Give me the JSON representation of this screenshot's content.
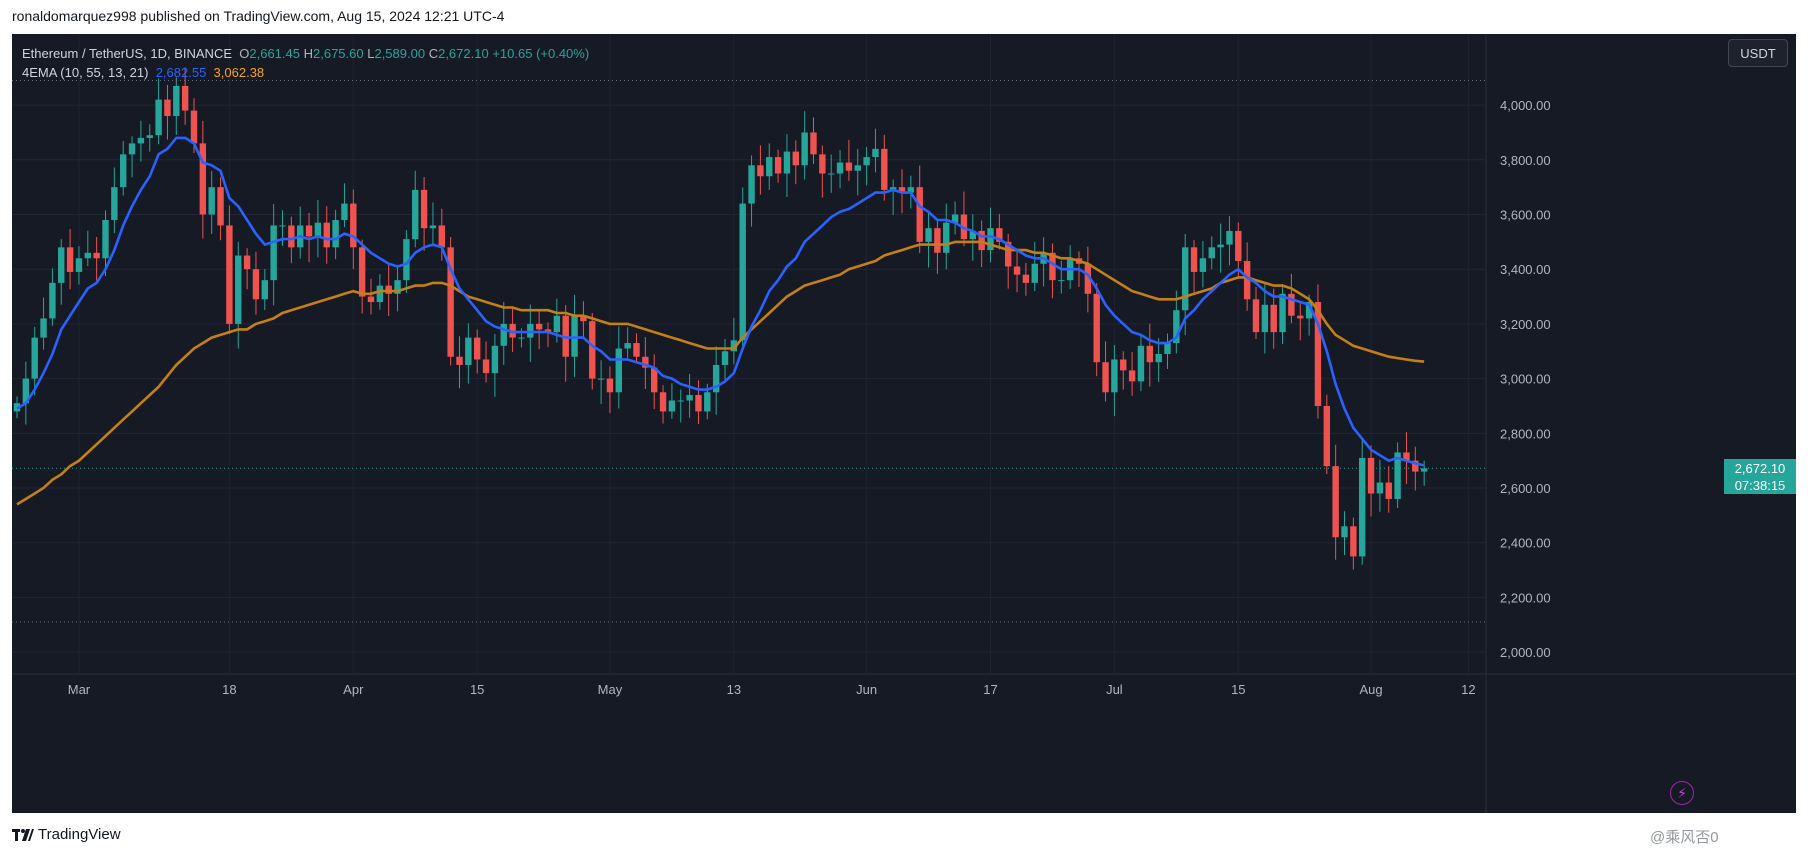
{
  "header": {
    "published_line": "ronaldomarquez998 published on TradingView.com, Aug 15, 2024 12:21 UTC-4"
  },
  "legend": {
    "symbol": "Ethereum / TetherUS, 1D, BINANCE",
    "o_label": "O",
    "o": "2,661.45",
    "h_label": "H",
    "h": "2,675.60",
    "l_label": "L",
    "l": "2,589.00",
    "c_label": "C",
    "c": "2,672.10",
    "change": "+10.65 (+0.40%)",
    "indicator": "4EMA (10, 55, 13, 21)",
    "ema_fast": "2,682.55",
    "ema_slow": "3,062.38"
  },
  "currency_button": "USDT",
  "price_badge": {
    "price": "2,672.10",
    "countdown": "07:38:15"
  },
  "colors": {
    "up": "#26a69a",
    "down": "#ef5350",
    "ema_fast": "#2962ff",
    "ema_slow": "#c47f17",
    "background": "#161a25"
  },
  "footer": {
    "brand": "TradingView",
    "watermark": "@乘风否0"
  },
  "flash_icon": "lightning-icon",
  "chart_data": {
    "type": "candlestick",
    "title": "Ethereum / TetherUS, 1D, BINANCE",
    "ylim": [
      1920,
      4260
    ],
    "yticks": [
      "2,000.00",
      "2,200.00",
      "2,400.00",
      "2,600.00",
      "2,800.00",
      "3,000.00",
      "3,200.00",
      "3,400.00",
      "3,600.00",
      "3,800.00",
      "4,000.00"
    ],
    "xticks": [
      "Mar",
      "18",
      "Apr",
      "15",
      "May",
      "13",
      "Jun",
      "17",
      "Jul",
      "15",
      "Aug",
      "12"
    ],
    "xtick_indices": [
      7,
      24,
      38,
      52,
      67,
      81,
      96,
      110,
      124,
      138,
      153,
      164
    ],
    "reference_lines": [
      4090,
      2110
    ],
    "last_price": 2672.1,
    "closes": [
      2910,
      3000,
      3150,
      3220,
      3350,
      3480,
      3390,
      3440,
      3460,
      3440,
      3580,
      3700,
      3820,
      3860,
      3880,
      3890,
      4020,
      3960,
      4070,
      3980,
      3860,
      3600,
      3700,
      3560,
      3200,
      3450,
      3400,
      3290,
      3360,
      3560,
      3560,
      3480,
      3560,
      3520,
      3570,
      3480,
      3580,
      3640,
      3480,
      3300,
      3280,
      3340,
      3310,
      3360,
      3510,
      3690,
      3550,
      3560,
      3480,
      3080,
      3050,
      3150,
      3070,
      3020,
      3120,
      3200,
      3150,
      3150,
      3200,
      3180,
      3170,
      3230,
      3080,
      3230,
      3210,
      3000,
      3000,
      2950,
      3110,
      3130,
      3080,
      3040,
      2950,
      2880,
      2920,
      2920,
      2940,
      2880,
      2950,
      3050,
      3100,
      3140,
      3640,
      3780,
      3740,
      3810,
      3750,
      3830,
      3780,
      3900,
      3820,
      3750,
      3750,
      3790,
      3760,
      3780,
      3810,
      3840,
      3690,
      3700,
      3680,
      3700,
      3500,
      3550,
      3460,
      3570,
      3600,
      3510,
      3540,
      3470,
      3550,
      3500,
      3410,
      3380,
      3350,
      3420,
      3460,
      3360,
      3360,
      3440,
      3420,
      3310,
      3060,
      2950,
      3070,
      3030,
      2990,
      3120,
      3060,
      3090,
      3130,
      3250,
      3480,
      3390,
      3440,
      3480,
      3490,
      3540,
      3430,
      3290,
      3170,
      3270,
      3170,
      3310,
      3230,
      3220,
      3280,
      2900,
      2680,
      2420,
      2460,
      2350,
      2710,
      2580,
      2620,
      2560,
      2730,
      2700,
      2660,
      2672.1
    ],
    "ema_fast": [
      2890,
      2910,
      2960,
      3020,
      3090,
      3180,
      3230,
      3280,
      3330,
      3350,
      3400,
      3470,
      3560,
      3630,
      3690,
      3740,
      3820,
      3840,
      3880,
      3880,
      3860,
      3790,
      3780,
      3760,
      3660,
      3630,
      3580,
      3530,
      3490,
      3500,
      3510,
      3510,
      3520,
      3510,
      3520,
      3510,
      3510,
      3530,
      3520,
      3490,
      3460,
      3440,
      3420,
      3410,
      3420,
      3460,
      3480,
      3490,
      3480,
      3400,
      3330,
      3290,
      3250,
      3210,
      3190,
      3180,
      3170,
      3170,
      3170,
      3170,
      3170,
      3160,
      3150,
      3150,
      3150,
      3120,
      3100,
      3070,
      3070,
      3070,
      3060,
      3050,
      3040,
      3010,
      3000,
      2980,
      2970,
      2960,
      2960,
      2970,
      2990,
      3020,
      3110,
      3190,
      3250,
      3320,
      3360,
      3410,
      3440,
      3500,
      3530,
      3560,
      3590,
      3610,
      3620,
      3640,
      3660,
      3680,
      3680,
      3690,
      3680,
      3680,
      3630,
      3610,
      3580,
      3580,
      3570,
      3550,
      3540,
      3520,
      3520,
      3510,
      3490,
      3470,
      3450,
      3440,
      3440,
      3420,
      3400,
      3400,
      3400,
      3380,
      3330,
      3270,
      3230,
      3200,
      3170,
      3160,
      3140,
      3130,
      3130,
      3150,
      3220,
      3250,
      3290,
      3320,
      3350,
      3380,
      3400,
      3370,
      3350,
      3320,
      3300,
      3300,
      3290,
      3280,
      3270,
      3200,
      3100,
      2980,
      2890,
      2820,
      2780,
      2740,
      2720,
      2700,
      2710,
      2700,
      2690,
      2682.55
    ],
    "ema_slow": [
      2540,
      2560,
      2580,
      2600,
      2630,
      2650,
      2680,
      2700,
      2730,
      2760,
      2790,
      2820,
      2850,
      2880,
      2910,
      2940,
      2970,
      3010,
      3050,
      3080,
      3110,
      3130,
      3150,
      3160,
      3170,
      3180,
      3180,
      3200,
      3210,
      3220,
      3240,
      3250,
      3260,
      3270,
      3280,
      3290,
      3300,
      3310,
      3320,
      3310,
      3310,
      3320,
      3320,
      3320,
      3330,
      3340,
      3340,
      3350,
      3350,
      3340,
      3320,
      3300,
      3290,
      3280,
      3270,
      3260,
      3260,
      3250,
      3250,
      3250,
      3250,
      3240,
      3240,
      3230,
      3230,
      3220,
      3210,
      3200,
      3200,
      3200,
      3190,
      3180,
      3170,
      3160,
      3150,
      3140,
      3130,
      3120,
      3110,
      3110,
      3110,
      3110,
      3150,
      3180,
      3210,
      3240,
      3270,
      3300,
      3320,
      3340,
      3350,
      3360,
      3370,
      3380,
      3400,
      3410,
      3420,
      3430,
      3450,
      3460,
      3470,
      3480,
      3490,
      3490,
      3490,
      3490,
      3500,
      3500,
      3500,
      3500,
      3490,
      3480,
      3470,
      3470,
      3470,
      3460,
      3460,
      3450,
      3440,
      3440,
      3430,
      3420,
      3400,
      3380,
      3360,
      3340,
      3320,
      3310,
      3300,
      3290,
      3290,
      3290,
      3300,
      3310,
      3320,
      3330,
      3350,
      3360,
      3370,
      3370,
      3360,
      3350,
      3340,
      3340,
      3330,
      3310,
      3290,
      3250,
      3200,
      3160,
      3140,
      3120,
      3110,
      3100,
      3090,
      3080,
      3075,
      3070,
      3065,
      3062.38
    ]
  }
}
